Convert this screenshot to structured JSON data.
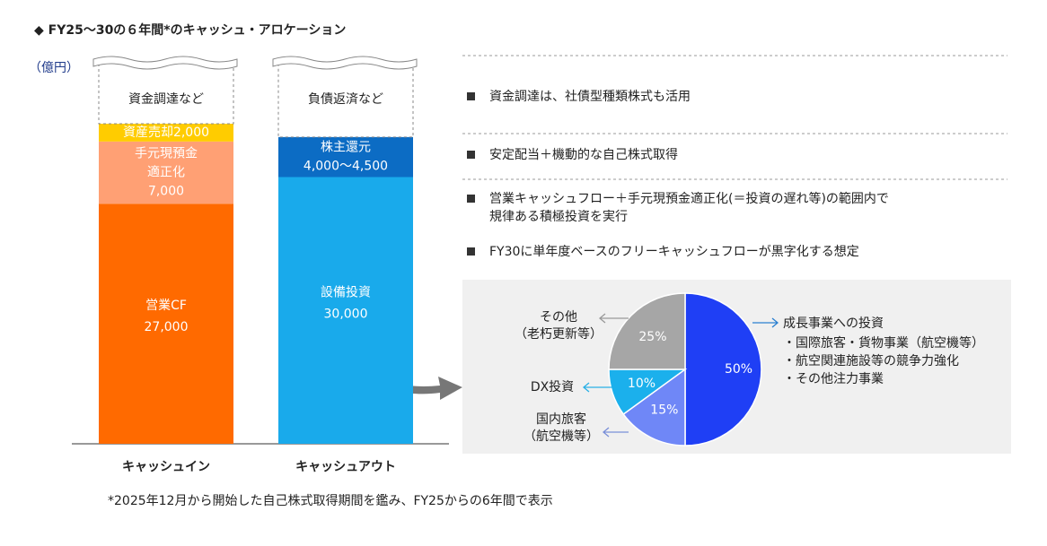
{
  "title": "◆ FY25～30の６年間*のキャッシュ・アロケーション",
  "bullets": [
    [
      "資金調達は、社債型種類株式も活用"
    ],
    [
      "安定配当＋機動的な自己株式取得"
    ],
    [
      "営業キャッシュフロー＋手元現預金適正化(＝投資の遅れ等)の範囲内で",
      "規律ある積極投資を実行"
    ],
    [
      "FY30に単年度ベースのフリーキャッシュフローが黒字化する想定"
    ]
  ],
  "footnote": "*2025年12月から開始した自己株式取得期間を鑑み、FY25からの6年間で表示",
  "chart_data": [
    {
      "type": "stacked-bar",
      "ylabel": "（億円）",
      "categories": [
        "キャッシュイン",
        "キャッシュアウト"
      ],
      "caps": [
        "資金調達など",
        "負債返済など"
      ],
      "ylim": [
        0,
        36000
      ],
      "series": [
        {
          "name": "営業CF",
          "color": "#ff6a00",
          "values": [
            27000,
            null
          ],
          "value_labels": [
            "27,000",
            null
          ]
        },
        {
          "name": "手元現預金適正化",
          "color": "#ffa074",
          "values": [
            7000,
            null
          ],
          "value_labels": [
            "7,000",
            null
          ]
        },
        {
          "name": "資産売却",
          "color": "#ffcc00",
          "values": [
            2000,
            null
          ],
          "value_labels": [
            "2,000",
            null
          ]
        },
        {
          "name": "設備投資",
          "color": "#19aaeb",
          "values": [
            null,
            30000
          ],
          "value_labels": [
            null,
            "30,000"
          ]
        },
        {
          "name": "株主還元",
          "color": "#0c6cc4",
          "values": [
            null,
            4500
          ],
          "value_labels": [
            null,
            "4,000～4,500"
          ]
        }
      ]
    },
    {
      "type": "pie",
      "categories": [
        "成長事業への投資",
        "国内旅客",
        "DX投資",
        "その他"
      ],
      "sublabels": [
        null,
        "（航空機等）",
        null,
        "（老朽更新等）"
      ],
      "details": [
        "・国際旅客・貨物事業（航空機等）",
        "・航空関連施設等の競争力強化",
        "・その他注力事業"
      ],
      "values": [
        50,
        15,
        10,
        25
      ],
      "value_labels": [
        "50%",
        "15%",
        "10%",
        "25%"
      ],
      "colors": [
        "#1f3ff5",
        "#6f87f7",
        "#1bb0ec",
        "#a6a6a6"
      ]
    }
  ]
}
